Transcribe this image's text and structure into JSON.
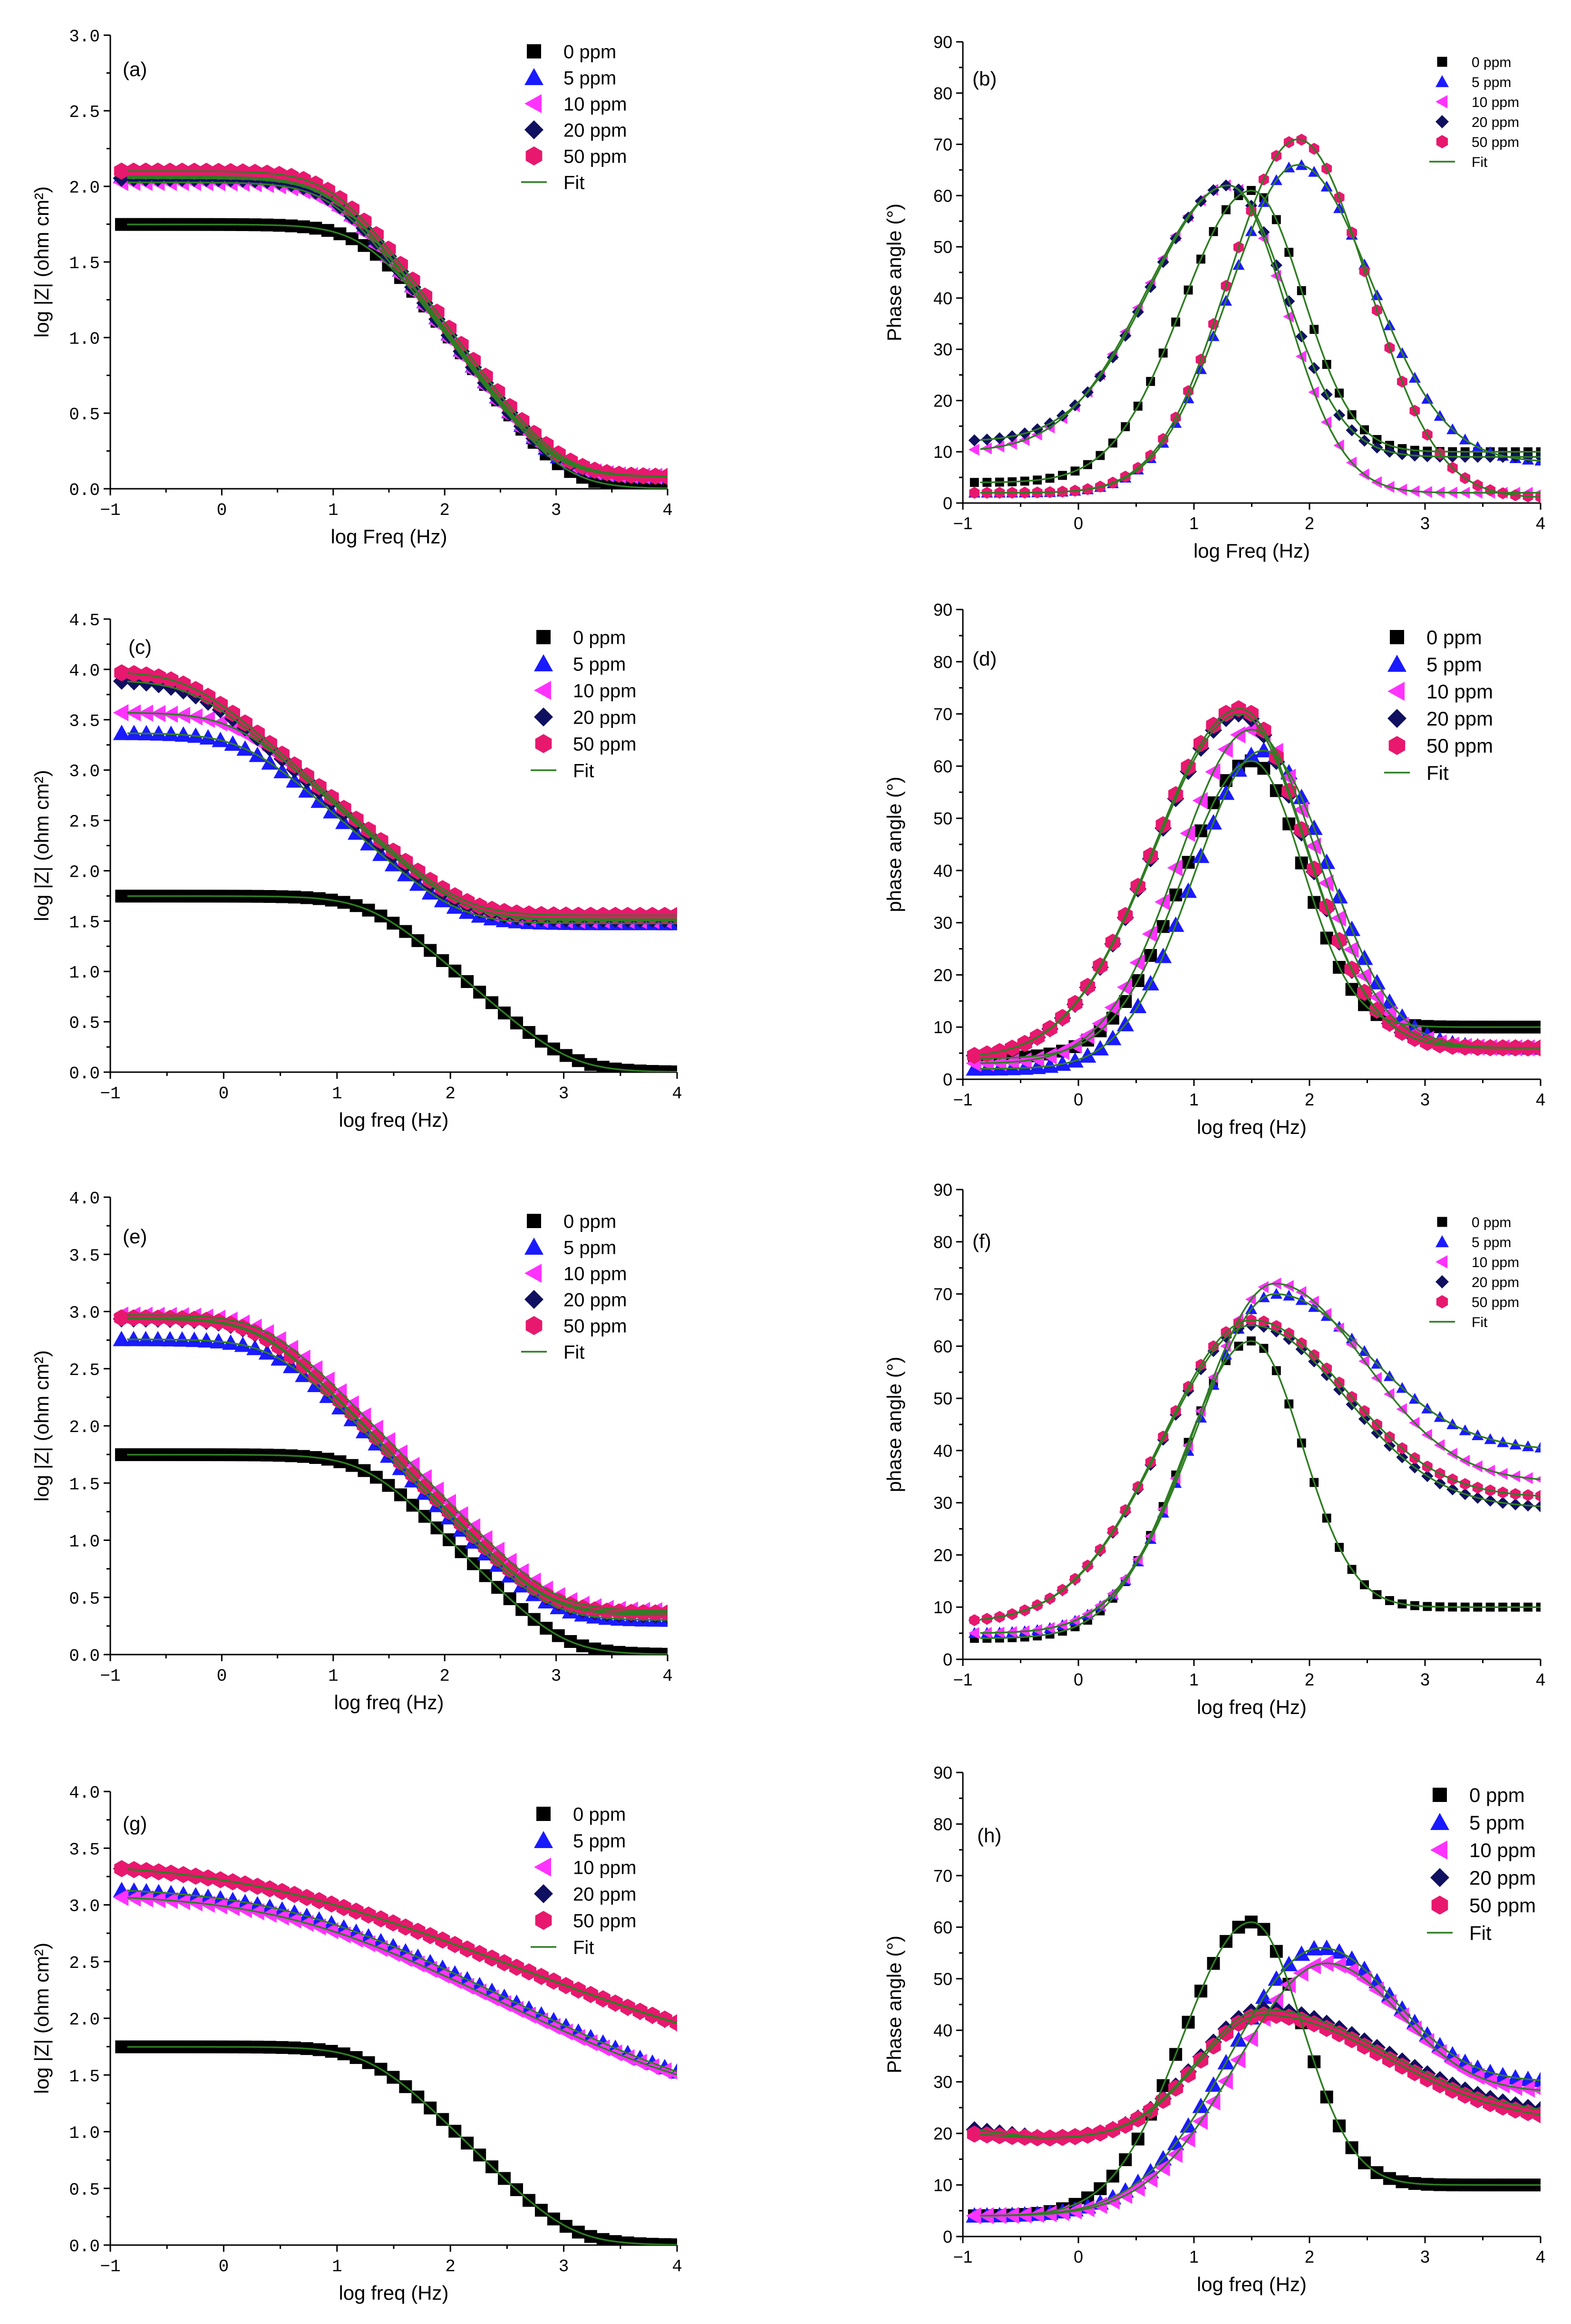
{
  "figure": {
    "colors": {
      "0 ppm": "#000000",
      "5 ppm": "#1a1aff",
      "10 ppm": "#ff33ff",
      "20 ppm": "#101060",
      "50 ppm": "#e8186e",
      "Fit": "#2e7d22"
    },
    "markers": {
      "0 ppm": "square",
      "5 ppm": "triangle-up",
      "10 ppm": "triangle-left",
      "20 ppm": "diamond",
      "50 ppm": "hexagon"
    }
  },
  "chart_data": [
    {
      "id": "a",
      "panel_label": "(a)",
      "type": "scatter",
      "xlabel": "log Freq (Hz)",
      "ylabel": "log |Z| (ohm cm²)",
      "xlim": [
        -1,
        4
      ],
      "ylim": [
        0.0,
        3.0
      ],
      "xticks": [
        "-1",
        "0",
        "1",
        "2",
        "3",
        "4"
      ],
      "yticks": [
        "0.0",
        "0.5",
        "1.0",
        "1.5",
        "2.0",
        "2.5",
        "3.0"
      ],
      "legend": [
        "0 ppm",
        "5 ppm",
        "10 ppm",
        "20 ppm",
        "50 ppm",
        "Fit"
      ],
      "series": [
        {
          "name": "0 ppm",
          "model": "bode_mag",
          "params": {
            "Rs": 1.0,
            "Rp": 55,
            "fc": 20
          }
        },
        {
          "name": "5 ppm",
          "model": "bode_mag",
          "params": {
            "Rs": 1.2,
            "Rp": 115,
            "fc": 10
          }
        },
        {
          "name": "10 ppm",
          "model": "bode_mag",
          "params": {
            "Rs": 1.2,
            "Rp": 105,
            "fc": 10
          }
        },
        {
          "name": "20 ppm",
          "model": "bode_mag",
          "params": {
            "Rs": 1.2,
            "Rp": 112,
            "fc": 10
          }
        },
        {
          "name": "50 ppm",
          "model": "bode_mag",
          "params": {
            "Rs": 1.2,
            "Rp": 125,
            "fc": 10
          }
        },
        {
          "name": "Fit",
          "model": "bode_mag_straight",
          "params": {
            "Rs": 0,
            "Rp": 100,
            "fc": 30,
            "slope": 1.0
          }
        }
      ]
    },
    {
      "id": "b",
      "panel_label": "(b)",
      "type": "scatter",
      "xlabel": "log Freq (Hz)",
      "ylabel": "Phase angle (°)",
      "xlim": [
        -1,
        4
      ],
      "ylim": [
        0,
        90
      ],
      "xticks": [
        "-1",
        "0",
        "1",
        "2",
        "3",
        "4"
      ],
      "yticks": [
        "0",
        "10",
        "20",
        "30",
        "40",
        "50",
        "60",
        "70",
        "80",
        "90"
      ],
      "legend": [
        "0 ppm",
        "5 ppm",
        "10 ppm",
        "20 ppm",
        "50 ppm",
        "Fit"
      ],
      "series": [
        {
          "name": "0 ppm",
          "model": "phase",
          "params": {
            "base": 4,
            "peak": 61,
            "center": 1.5,
            "wl": 0.85,
            "wr": 0.62,
            "tail": 10
          }
        },
        {
          "name": "5 ppm",
          "model": "phase",
          "params": {
            "base": 2,
            "peak": 66,
            "center": 1.9,
            "wl": 0.85,
            "wr": 0.9,
            "tail": 8
          }
        },
        {
          "name": "10 ppm",
          "model": "phase",
          "params": {
            "base": 10,
            "peak": 62,
            "center": 1.3,
            "wl": 1.0,
            "wr": 0.7,
            "tail": 2
          }
        },
        {
          "name": "20 ppm",
          "model": "phase",
          "params": {
            "base": 12,
            "peak": 62,
            "center": 1.3,
            "wl": 0.95,
            "wr": 0.7,
            "tail": 9
          }
        },
        {
          "name": "50 ppm",
          "model": "phase",
          "params": {
            "base": 2,
            "peak": 71,
            "center": 1.9,
            "wl": 0.85,
            "wr": 0.85,
            "tail": 1
          }
        },
        {
          "name": "Fit",
          "model": "phase",
          "params": {
            "base": 2,
            "peak": 63,
            "center": 1.5,
            "wl": 0.9,
            "wr": 0.7,
            "tail": 3
          }
        }
      ]
    },
    {
      "id": "c",
      "panel_label": "(c)",
      "type": "scatter",
      "xlabel": "log freq (Hz)",
      "ylabel": "log |Z| (ohm cm²)",
      "xlim": [
        -1,
        4
      ],
      "ylim": [
        0.0,
        4.5
      ],
      "xticks": [
        "-1",
        "0",
        "1",
        "2",
        "3",
        "4"
      ],
      "yticks": [
        "0.0",
        "0.5",
        "1.0",
        "1.5",
        "2.0",
        "2.5",
        "3.0",
        "3.5",
        "4.0",
        "4.5"
      ],
      "legend": [
        "0 ppm",
        "5 ppm",
        "10 ppm",
        "20 ppm",
        "50 ppm",
        "Fit"
      ],
      "series": [
        {
          "name": "0 ppm",
          "model": "bode_mag",
          "params": {
            "Rs": 1.0,
            "Rp": 55,
            "fc": 20
          }
        },
        {
          "name": "5 ppm",
          "model": "bode_mag",
          "params": {
            "Rs": 30,
            "Rp": 2300,
            "fc": 1.5
          }
        },
        {
          "name": "10 ppm",
          "model": "bode_mag",
          "params": {
            "Rs": 32,
            "Rp": 3700,
            "fc": 1.2
          }
        },
        {
          "name": "20 ppm",
          "model": "bode_mag",
          "params": {
            "Rs": 33,
            "Rp": 7800,
            "fc": 0.55
          }
        },
        {
          "name": "50 ppm",
          "model": "bode_mag",
          "params": {
            "Rs": 36,
            "Rp": 9500,
            "fc": 0.5
          }
        },
        {
          "name": "Fit",
          "model": "bode_mag",
          "params": {
            "Rs": 30,
            "Rp": 2100,
            "fc": 1.6
          }
        }
      ]
    },
    {
      "id": "d",
      "panel_label": "(d)",
      "type": "scatter",
      "xlabel": "log freq (Hz)",
      "ylabel": "phase angle (°)",
      "xlim": [
        -1,
        4
      ],
      "ylim": [
        0,
        90
      ],
      "xticks": [
        "-1",
        "0",
        "1",
        "2",
        "3",
        "4"
      ],
      "yticks": [
        "0",
        "10",
        "20",
        "30",
        "40",
        "50",
        "60",
        "70",
        "80",
        "90"
      ],
      "legend": [
        "0 ppm",
        "5 ppm",
        "10 ppm",
        "20 ppm",
        "50 ppm",
        "Fit"
      ],
      "series": [
        {
          "name": "0 ppm",
          "model": "phase",
          "params": {
            "base": 4,
            "peak": 61,
            "center": 1.5,
            "wl": 0.85,
            "wr": 0.62,
            "tail": 10
          }
        },
        {
          "name": "5 ppm",
          "model": "phase",
          "params": {
            "base": 2,
            "peak": 63,
            "center": 1.6,
            "wl": 0.85,
            "wr": 0.8,
            "tail": 6
          }
        },
        {
          "name": "10 ppm",
          "model": "phase",
          "params": {
            "base": 3,
            "peak": 67,
            "center": 1.5,
            "wl": 0.9,
            "wr": 0.8,
            "tail": 6
          }
        },
        {
          "name": "20 ppm",
          "model": "phase",
          "params": {
            "base": 4,
            "peak": 70,
            "center": 1.4,
            "wl": 1.05,
            "wr": 0.8,
            "tail": 6
          }
        },
        {
          "name": "50 ppm",
          "model": "phase",
          "params": {
            "base": 4,
            "peak": 71,
            "center": 1.4,
            "wl": 1.05,
            "wr": 0.8,
            "tail": 6
          }
        },
        {
          "name": "Fit",
          "model": "phase",
          "params": {
            "base": 4,
            "peak": 63,
            "center": 1.6,
            "wl": 0.9,
            "wr": 0.75,
            "tail": 6
          }
        }
      ]
    },
    {
      "id": "e",
      "panel_label": "(e)",
      "type": "scatter",
      "xlabel": "log freq (Hz)",
      "ylabel": "log |Z| (ohm cm²)",
      "xlim": [
        -1,
        4
      ],
      "ylim": [
        0.0,
        4.0
      ],
      "xticks": [
        "-1",
        "0",
        "1",
        "2",
        "3",
        "4"
      ],
      "yticks": [
        "0.0",
        "0.5",
        "1.0",
        "1.5",
        "2.0",
        "2.5",
        "3.0",
        "3.5",
        "4.0"
      ],
      "legend": [
        "0 ppm",
        "5 ppm",
        "10 ppm",
        "20 ppm",
        "50 ppm",
        "Fit"
      ],
      "series": [
        {
          "name": "0 ppm",
          "model": "bode_mag",
          "params": {
            "Rs": 1.0,
            "Rp": 55,
            "fc": 20
          }
        },
        {
          "name": "5 ppm",
          "model": "bode_mag",
          "params": {
            "Rs": 2.0,
            "Rp": 570,
            "fc": 3
          }
        },
        {
          "name": "10 ppm",
          "model": "bode_mag",
          "params": {
            "Rs": 2.4,
            "Rp": 930,
            "fc": 2.5
          }
        },
        {
          "name": "20 ppm",
          "model": "bode_mag",
          "params": {
            "Rs": 2.2,
            "Rp": 860,
            "fc": 2.2
          }
        },
        {
          "name": "50 ppm",
          "model": "bode_mag",
          "params": {
            "Rs": 2.3,
            "Rp": 880,
            "fc": 2.2
          }
        },
        {
          "name": "Fit",
          "model": "bode_mag",
          "params": {
            "Rs": 2.3,
            "Rp": 880,
            "fc": 2.3
          }
        }
      ]
    },
    {
      "id": "f",
      "panel_label": "(f)",
      "type": "scatter",
      "xlabel": "log freq (Hz)",
      "ylabel": "phase angle (°)",
      "xlim": [
        -1,
        4
      ],
      "ylim": [
        0,
        90
      ],
      "xticks": [
        "-1",
        "0",
        "1",
        "2",
        "3",
        "4"
      ],
      "yticks": [
        "0",
        "10",
        "20",
        "30",
        "40",
        "50",
        "60",
        "70",
        "80",
        "90"
      ],
      "legend": [
        "0 ppm",
        "5 ppm",
        "10 ppm",
        "20 ppm",
        "50 ppm",
        "Fit"
      ],
      "series": [
        {
          "name": "0 ppm",
          "model": "phase",
          "params": {
            "base": 4,
            "peak": 61,
            "center": 1.5,
            "wl": 0.85,
            "wr": 0.62,
            "tail": 10
          }
        },
        {
          "name": "5 ppm",
          "model": "phase",
          "params": {
            "base": 5,
            "peak": 70,
            "center": 1.7,
            "wl": 0.95,
            "wr": 1.15,
            "tail": 40
          }
        },
        {
          "name": "10 ppm",
          "model": "phase",
          "params": {
            "base": 5,
            "peak": 72,
            "center": 1.7,
            "wl": 0.95,
            "wr": 1.1,
            "tail": 34
          }
        },
        {
          "name": "20 ppm",
          "model": "phase",
          "params": {
            "base": 7,
            "peak": 64,
            "center": 1.5,
            "wl": 1.1,
            "wr": 1.15,
            "tail": 29
          }
        },
        {
          "name": "50 ppm",
          "model": "phase",
          "params": {
            "base": 7,
            "peak": 65,
            "center": 1.5,
            "wl": 1.1,
            "wr": 1.15,
            "tail": 31
          }
        },
        {
          "name": "Fit",
          "model": "phase",
          "params": {
            "base": 7,
            "peak": 64,
            "center": 1.55,
            "wl": 1.1,
            "wr": 1.2,
            "tail": 28
          }
        }
      ]
    },
    {
      "id": "g",
      "panel_label": "(g)",
      "type": "scatter",
      "xlabel": "log freq (Hz)",
      "ylabel": "log |Z| (ohm cm²)",
      "xlim": [
        -1,
        4
      ],
      "ylim": [
        0.0,
        4.0
      ],
      "xticks": [
        "-1",
        "0",
        "1",
        "2",
        "3",
        "4"
      ],
      "yticks": [
        "0.0",
        "0.5",
        "1.0",
        "1.5",
        "2.0",
        "2.5",
        "3.0",
        "3.5",
        "4.0"
      ],
      "legend": [
        "0 ppm",
        "5 ppm",
        "10 ppm",
        "20 ppm",
        "50 ppm",
        "Fit"
      ],
      "series": [
        {
          "name": "0 ppm",
          "model": "bode_mag",
          "params": {
            "Rs": 1.0,
            "Rp": 55,
            "fc": 20
          }
        },
        {
          "name": "5 ppm",
          "model": "bode_mag_slope",
          "params": {
            "Rs": 15,
            "Rp": 1450,
            "fc": 5,
            "slope": 0.55
          }
        },
        {
          "name": "10 ppm",
          "model": "bode_mag_slope",
          "params": {
            "Rs": 16,
            "Rp": 1250,
            "fc": 5,
            "slope": 0.55
          }
        },
        {
          "name": "20 ppm",
          "model": "bode_mag_slope",
          "params": {
            "Rs": 33,
            "Rp": 2450,
            "fc": 3,
            "slope": 0.45
          }
        },
        {
          "name": "50 ppm",
          "model": "bode_mag_slope",
          "params": {
            "Rs": 34,
            "Rp": 2450,
            "fc": 3,
            "slope": 0.45
          }
        },
        {
          "name": "Fit",
          "model": "bode_mag_slope",
          "params": {
            "Rs": 16,
            "Rp": 1300,
            "fc": 5,
            "slope": 0.55
          }
        }
      ]
    },
    {
      "id": "h",
      "panel_label": "(h)",
      "type": "scatter",
      "xlabel": "log freq (Hz)",
      "ylabel": "Phase angle (°)",
      "xlim": [
        -1,
        4
      ],
      "ylim": [
        0,
        90
      ],
      "xticks": [
        "-1",
        "0",
        "1",
        "2",
        "3",
        "4"
      ],
      "yticks": [
        "0",
        "10",
        "20",
        "30",
        "40",
        "50",
        "60",
        "70",
        "80",
        "90"
      ],
      "legend": [
        "0 ppm",
        "5 ppm",
        "10 ppm",
        "20 ppm",
        "50 ppm",
        "Fit"
      ],
      "series": [
        {
          "name": "0 ppm",
          "model": "phase",
          "params": {
            "base": 4,
            "peak": 61,
            "center": 1.5,
            "wl": 0.85,
            "wr": 0.62,
            "tail": 10
          }
        },
        {
          "name": "5 ppm",
          "model": "phase",
          "params": {
            "base": 4,
            "peak": 56,
            "center": 2.1,
            "wl": 1.1,
            "wr": 0.9,
            "tail": 30
          }
        },
        {
          "name": "10 ppm",
          "model": "phase",
          "params": {
            "base": 4,
            "peak": 53,
            "center": 2.15,
            "wl": 1.1,
            "wr": 0.9,
            "tail": 28
          }
        },
        {
          "name": "20 ppm",
          "model": "phase2",
          "params": {
            "base": 21,
            "dip": 19,
            "peak": 44,
            "center": 1.6,
            "wl": 0.8,
            "wr": 1.5,
            "tail": 23
          }
        },
        {
          "name": "50 ppm",
          "model": "phase2",
          "params": {
            "base": 20,
            "dip": 19,
            "peak": 43,
            "center": 1.6,
            "wl": 0.8,
            "wr": 1.5,
            "tail": 22
          }
        },
        {
          "name": "Fit",
          "model": "phase2",
          "params": {
            "base": 20,
            "dip": 19,
            "peak": 44,
            "center": 1.55,
            "wl": 0.8,
            "wr": 1.4,
            "tail": 22
          }
        }
      ]
    }
  ]
}
